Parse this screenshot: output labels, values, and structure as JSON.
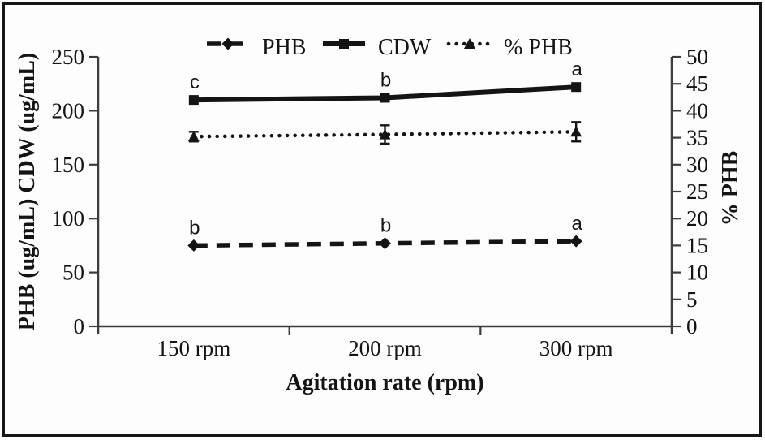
{
  "figure": {
    "background": "#fdfdfd",
    "frame_color": "#161616",
    "ink": "#141414",
    "axis_color": "#3c3c3c"
  },
  "chart_data": {
    "type": "line",
    "title": "",
    "categories": [
      "150 rpm",
      "200 rpm",
      "300 rpm"
    ],
    "xlabel": "Agitation rate (rpm)",
    "ylabel_left": "PHB (ug/mL)  CDW (ug/mL)",
    "ylabel_right": "% PHB",
    "left_axis": {
      "min": 0,
      "max": 250,
      "ticks": [
        0,
        50,
        100,
        150,
        200,
        250
      ]
    },
    "right_axis": {
      "min": 0,
      "max": 50,
      "ticks": [
        0,
        5,
        10,
        15,
        20,
        25,
        30,
        35,
        40,
        45,
        50
      ]
    },
    "grid": false,
    "legend_position": "top-center",
    "legend": [
      "PHB",
      "CDW",
      "% PHB"
    ],
    "series": [
      {
        "name": "PHB",
        "axis": "left",
        "marker": "diamond",
        "line_style": "dashed",
        "values": [
          75,
          77,
          79
        ],
        "point_labels": [
          "b",
          "b",
          "a"
        ]
      },
      {
        "name": "CDW",
        "axis": "left",
        "marker": "square",
        "line_style": "solid",
        "values": [
          210,
          212,
          222
        ],
        "point_labels": [
          "c",
          "b",
          "a"
        ]
      },
      {
        "name": "% PHB",
        "axis": "right",
        "marker": "triangle",
        "line_style": "dotted",
        "values": [
          35.2,
          35.6,
          36.1
        ],
        "errors": [
          0.9,
          1.7,
          1.8
        ],
        "point_labels": [
          "",
          "",
          ""
        ]
      }
    ]
  }
}
